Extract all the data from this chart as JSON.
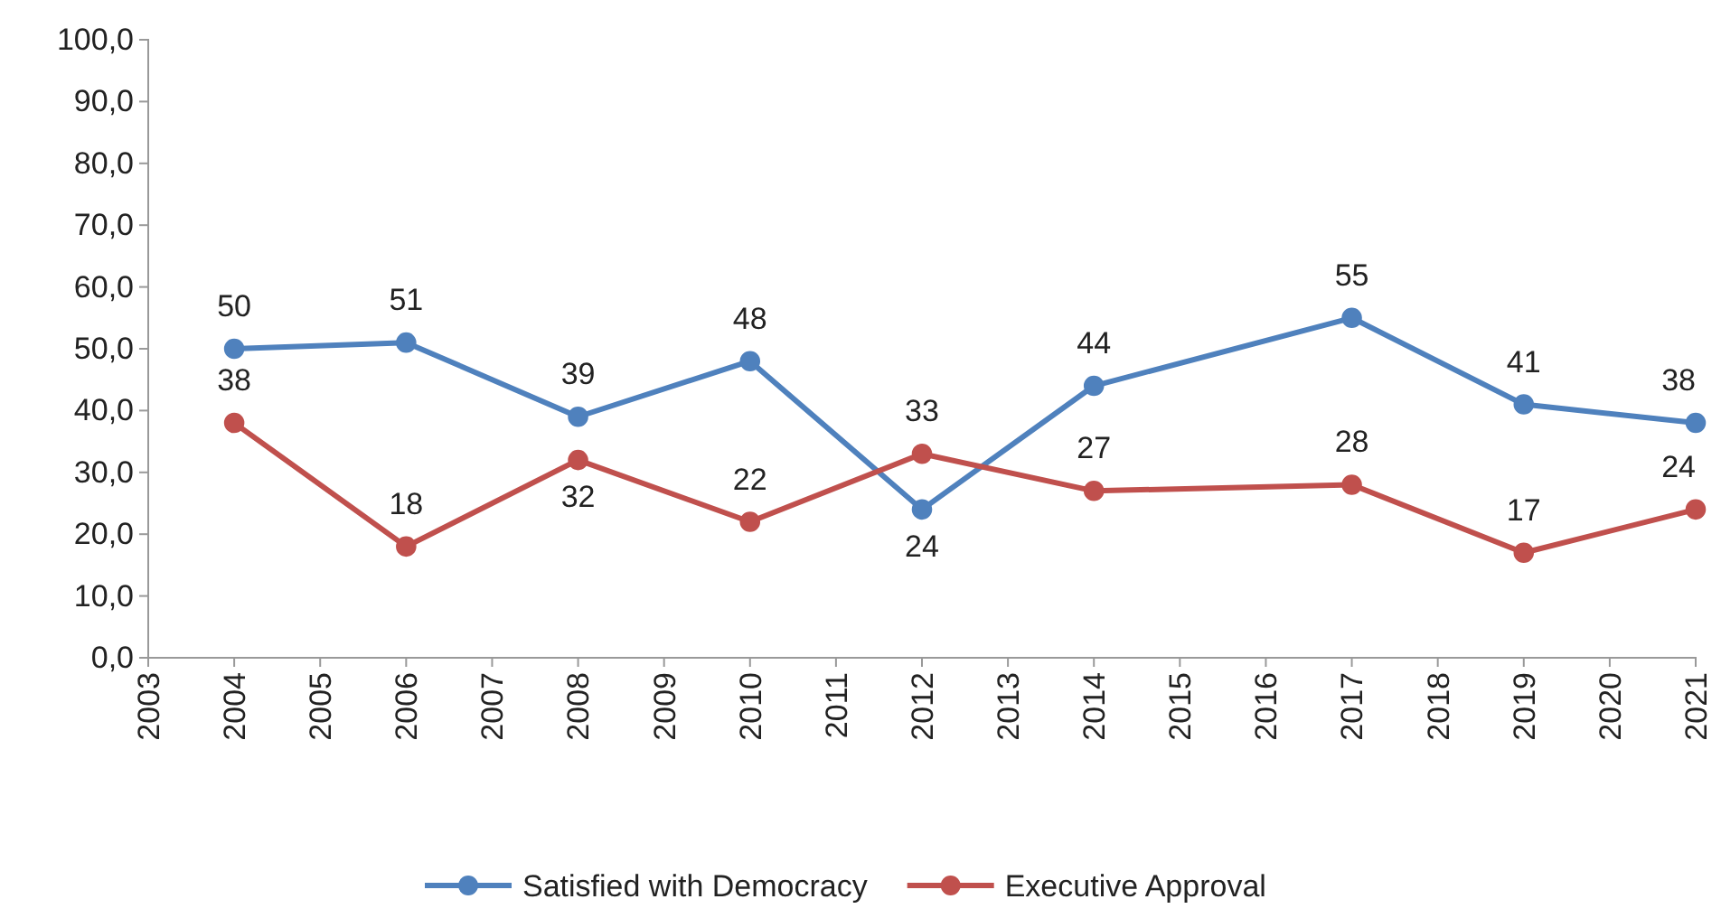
{
  "chart_data": {
    "type": "line",
    "x": [
      2004,
      2006,
      2008,
      2010,
      2012,
      2014,
      2017,
      2019,
      2021
    ],
    "series": [
      {
        "name": "Satisfied with Democracy",
        "color": "#4f81bd",
        "values": [
          50,
          51,
          39,
          48,
          24,
          44,
          55,
          41,
          38
        ]
      },
      {
        "name": "Executive Approval",
        "color": "#c0504d",
        "values": [
          38,
          18,
          32,
          22,
          33,
          27,
          28,
          17,
          24
        ]
      }
    ],
    "xlim": [
      2003,
      2021
    ],
    "xticks": [
      2003,
      2004,
      2005,
      2006,
      2007,
      2008,
      2009,
      2010,
      2011,
      2012,
      2013,
      2014,
      2015,
      2016,
      2017,
      2018,
      2019,
      2020,
      2021
    ],
    "ylim": [
      0,
      100
    ],
    "yticks": [
      {
        "value": 0,
        "label": "0,0"
      },
      {
        "value": 10,
        "label": "10,0"
      },
      {
        "value": 20,
        "label": "20,0"
      },
      {
        "value": 30,
        "label": "30,0"
      },
      {
        "value": 40,
        "label": "40,0"
      },
      {
        "value": 50,
        "label": "50,0"
      },
      {
        "value": 60,
        "label": "60,0"
      },
      {
        "value": 70,
        "label": "70,0"
      },
      {
        "value": 80,
        "label": "80,0"
      },
      {
        "value": 90,
        "label": "90,0"
      },
      {
        "value": 100,
        "label": "100,0"
      }
    ],
    "grid": false,
    "legend": "bottom",
    "marker": "circle",
    "line_style": "solid",
    "data_labels": true
  }
}
